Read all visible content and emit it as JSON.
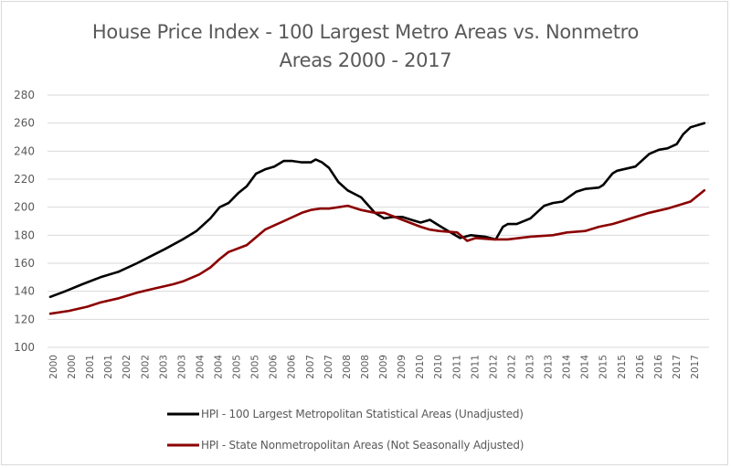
{
  "chart_data": {
    "type": "line",
    "title_line1": "House Price Index - 100 Largest Metro Areas vs. Nonmetro",
    "title_line2": "Areas 2000 - 2017",
    "xlabel": "",
    "ylabel": "",
    "ylim": [
      100,
      280
    ],
    "yticks": [
      100,
      120,
      140,
      160,
      180,
      200,
      220,
      240,
      260,
      280
    ],
    "xlim": [
      2000.0,
      2017.6
    ],
    "xtick_labels": [
      "2000",
      "2000",
      "2001",
      "2001",
      "2002",
      "2002",
      "2003",
      "2003",
      "2004",
      "2004",
      "2005",
      "2005",
      "2006",
      "2006",
      "2007",
      "2007",
      "2008",
      "2008",
      "2009",
      "2009",
      "2010",
      "2010",
      "2011",
      "2011",
      "2012",
      "2012",
      "2013",
      "2013",
      "2014",
      "2014",
      "2015",
      "2015",
      "2016",
      "2016",
      "2017",
      "2017"
    ],
    "grid": true,
    "legend_position": "bottom",
    "series": [
      {
        "name": "HPI - 100 Largest Metropolitan Statistical Areas (Unadjusted)",
        "color": "#000000",
        "x": [
          2000.0,
          2000.4,
          2000.86,
          2001.35,
          2001.84,
          2002.33,
          2002.7,
          2003.07,
          2003.56,
          2003.93,
          2004.3,
          2004.55,
          2004.79,
          2005.05,
          2005.28,
          2005.53,
          2005.77,
          2006.02,
          2006.27,
          2006.5,
          2006.76,
          2007.0,
          2007.13,
          2007.3,
          2007.49,
          2007.74,
          2007.99,
          2008.35,
          2008.72,
          2008.97,
          2009.2,
          2009.46,
          2009.7,
          2009.95,
          2010.2,
          2010.44,
          2010.69,
          2011.01,
          2011.3,
          2011.67,
          2011.97,
          2012.16,
          2012.29,
          2012.53,
          2012.9,
          2013.27,
          2013.5,
          2013.76,
          2014.13,
          2014.37,
          2014.74,
          2014.86,
          2015.1,
          2015.23,
          2015.72,
          2016.09,
          2016.35,
          2016.58,
          2016.83,
          2017.0,
          2017.2,
          2017.57
        ],
        "y": [
          136,
          140,
          145,
          150,
          154,
          160,
          165,
          170,
          177,
          183,
          192,
          200,
          203,
          210,
          215,
          224,
          227,
          229,
          233,
          233,
          232,
          232,
          234,
          232,
          228,
          218,
          212,
          207,
          196,
          192,
          193,
          193,
          191,
          189,
          191,
          187,
          183,
          178,
          180,
          179,
          177,
          186,
          188,
          188,
          192,
          201,
          203,
          204,
          211,
          213,
          214,
          216,
          224,
          226,
          229,
          238,
          241,
          242,
          245,
          252,
          257,
          260
        ]
      },
      {
        "name": "HPI - State Nonmetropolitan Areas (Not Seasonally Adjusted)",
        "color": "#8b0000",
        "x": [
          2000.0,
          2000.5,
          2001.0,
          2001.35,
          2001.84,
          2002.33,
          2002.8,
          2003.3,
          2003.56,
          2004.0,
          2004.3,
          2004.55,
          2004.79,
          2005.28,
          2005.77,
          2006.02,
          2006.27,
          2006.76,
          2007.0,
          2007.25,
          2007.49,
          2007.74,
          2007.99,
          2008.35,
          2008.72,
          2008.97,
          2009.46,
          2009.95,
          2010.2,
          2010.44,
          2010.93,
          2011.2,
          2011.43,
          2011.92,
          2012.29,
          2012.9,
          2013.5,
          2013.88,
          2014.37,
          2014.74,
          2015.1,
          2015.36,
          2015.72,
          2016.09,
          2016.58,
          2016.83,
          2017.2,
          2017.57
        ],
        "y": [
          124,
          126,
          129,
          132,
          135,
          139,
          142,
          145,
          147,
          152,
          157,
          163,
          168,
          173,
          184,
          187,
          190,
          196,
          198,
          199,
          199,
          200,
          201,
          198,
          196,
          196,
          191,
          186,
          184,
          183,
          182,
          176,
          178,
          177,
          177,
          179,
          180,
          182,
          183,
          186,
          188,
          190,
          193,
          196,
          199,
          201,
          204,
          212
        ]
      }
    ]
  }
}
